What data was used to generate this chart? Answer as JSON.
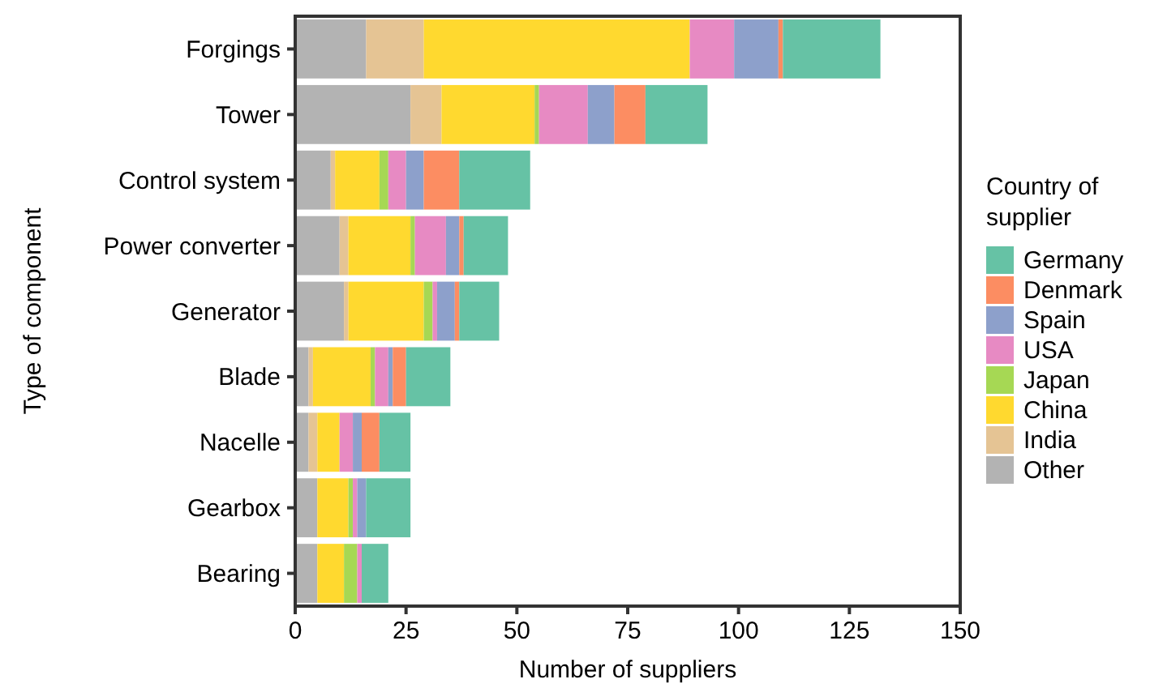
{
  "chart_data": {
    "type": "bar",
    "orientation": "horizontal",
    "stacked": true,
    "xlabel": "Number of suppliers",
    "ylabel": "Type of component",
    "legend_title": "Country of supplier",
    "legend": "right",
    "grid": false,
    "categories": [
      "Forgings",
      "Tower",
      "Control system",
      "Power converter",
      "Generator",
      "Blade",
      "Nacelle",
      "Gearbox",
      "Bearing"
    ],
    "xlim": [
      0,
      150
    ],
    "xticks": [
      0,
      25,
      50,
      75,
      100,
      125,
      150
    ],
    "series": [
      {
        "name": "Other",
        "color": "#b3b3b3",
        "values": [
          16,
          26,
          8,
          10,
          11,
          3,
          3,
          5,
          5
        ]
      },
      {
        "name": "India",
        "color": "#e5c494",
        "values": [
          13,
          7,
          1,
          2,
          1,
          1,
          2,
          0,
          0
        ]
      },
      {
        "name": "China",
        "color": "#ffd92f",
        "values": [
          60,
          21,
          10,
          14,
          17,
          13,
          5,
          7,
          6
        ]
      },
      {
        "name": "Japan",
        "color": "#a6d854",
        "values": [
          0,
          1,
          2,
          1,
          2,
          1,
          0,
          1,
          3
        ]
      },
      {
        "name": "USA",
        "color": "#e78ac3",
        "values": [
          10,
          11,
          4,
          7,
          1,
          3,
          3,
          1,
          1
        ]
      },
      {
        "name": "Spain",
        "color": "#8da0cb",
        "values": [
          10,
          6,
          4,
          3,
          4,
          1,
          2,
          2,
          0
        ]
      },
      {
        "name": "Denmark",
        "color": "#fc8d62",
        "values": [
          1,
          7,
          8,
          1,
          1,
          3,
          4,
          0,
          0
        ]
      },
      {
        "name": "Germany",
        "color": "#66c2a5",
        "values": [
          22,
          14,
          16,
          10,
          9,
          10,
          7,
          10,
          6
        ]
      }
    ]
  }
}
